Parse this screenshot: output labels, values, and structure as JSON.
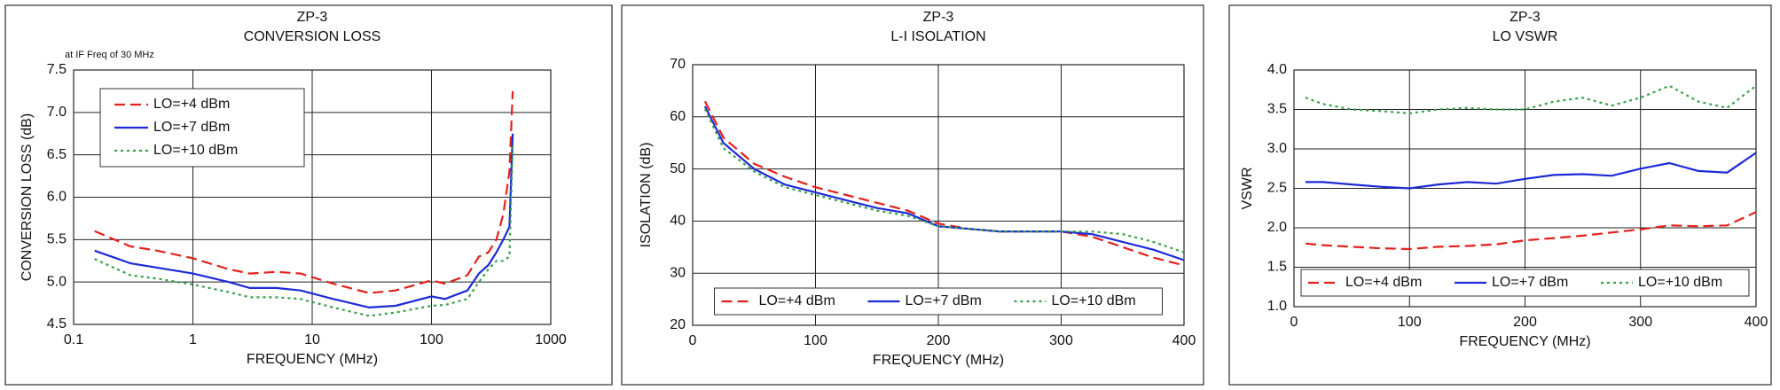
{
  "chart_data": [
    {
      "type": "line",
      "title": "ZP-3",
      "subtitle": "CONVERSION LOSS",
      "annotation": "at IF Freq of 30 MHz",
      "xlabel": "FREQUENCY (MHz)",
      "ylabel": "CONVERSION LOSS (dB)",
      "xscale": "log",
      "grid": true,
      "legend": "upper left",
      "xlim": [
        0.1,
        1000
      ],
      "xticks": [
        0.1,
        1,
        10,
        100,
        1000
      ],
      "ylim": [
        4.5,
        7.5
      ],
      "yticks": [
        4.5,
        {
          "value": 5,
          "label": "5.0"
        },
        5.5,
        {
          "value": 6,
          "label": "6.0"
        },
        6.5,
        {
          "value": 7,
          "label": "7.0"
        },
        7.5
      ],
      "x": [
        0.15,
        0.3,
        0.5,
        1,
        2,
        3,
        5,
        8,
        15,
        30,
        50,
        100,
        130,
        200,
        250,
        300,
        350,
        400,
        450,
        480
      ],
      "series": [
        {
          "name": "LO=+4 dBm",
          "color": "#e3211c",
          "dash": "12 6",
          "values": [
            5.6,
            5.42,
            5.37,
            5.28,
            5.15,
            5.1,
            5.12,
            5.1,
            4.98,
            4.87,
            4.9,
            5.02,
            4.98,
            5.08,
            5.3,
            5.35,
            5.5,
            5.8,
            6.3,
            7.25
          ]
        },
        {
          "name": "LO=+7 dBm",
          "color": "#1d2ad6",
          "dash": "none",
          "values": [
            5.37,
            5.22,
            5.17,
            5.1,
            5.0,
            4.93,
            4.93,
            4.9,
            4.8,
            4.7,
            4.72,
            4.83,
            4.8,
            4.9,
            5.1,
            5.2,
            5.35,
            5.5,
            5.65,
            6.75
          ]
        },
        {
          "name": "LO=+10 dBm",
          "color": "#34a047",
          "dash": "3 4",
          "values": [
            5.27,
            5.08,
            5.04,
            4.97,
            4.88,
            4.82,
            4.82,
            4.8,
            4.7,
            4.6,
            4.64,
            4.72,
            4.73,
            4.8,
            5.0,
            5.15,
            5.25,
            5.25,
            5.3,
            6.6
          ]
        }
      ]
    },
    {
      "type": "line",
      "title": "ZP-3",
      "subtitle": "L-I ISOLATION",
      "xlabel": "FREQUENCY (MHz)",
      "ylabel": "ISOLATION (dB)",
      "xscale": "linear",
      "grid": true,
      "legend": "lower center",
      "xlim": [
        0,
        400
      ],
      "xticks": [
        0,
        100,
        200,
        300,
        400
      ],
      "ylim": [
        20,
        70
      ],
      "yticks": [
        20,
        30,
        40,
        50,
        60,
        70
      ],
      "x": [
        10,
        25,
        50,
        75,
        100,
        125,
        150,
        175,
        200,
        225,
        250,
        275,
        300,
        325,
        350,
        375,
        400
      ],
      "series": [
        {
          "name": "LO=+4 dBm",
          "color": "#e3211c",
          "dash": "12 6",
          "values": [
            63,
            56,
            51,
            48.5,
            46.5,
            45,
            43.5,
            42,
            39.5,
            38.5,
            38,
            38,
            38,
            37,
            35,
            33,
            31.5
          ]
        },
        {
          "name": "LO=+7 dBm",
          "color": "#1d2ad6",
          "dash": "none",
          "values": [
            62,
            55,
            50,
            47,
            45.5,
            44,
            42.5,
            41.5,
            39,
            38.5,
            38,
            38,
            38,
            37.5,
            36,
            34.5,
            32.5
          ]
        },
        {
          "name": "LO=+10 dBm",
          "color": "#34a047",
          "dash": "3 4",
          "values": [
            61.5,
            54,
            49.5,
            46.5,
            45,
            43.5,
            42,
            41,
            39,
            38.5,
            38,
            38,
            38,
            38,
            37.5,
            36,
            34
          ]
        }
      ]
    },
    {
      "type": "line",
      "title": "ZP-3",
      "subtitle": "LO VSWR",
      "xlabel": "FREQUENCY (MHz)",
      "ylabel": "VSWR",
      "xscale": "linear",
      "grid": true,
      "legend": "lower center",
      "xlim": [
        0,
        400
      ],
      "xticks": [
        0,
        100,
        200,
        300,
        400
      ],
      "ylim": [
        1,
        4
      ],
      "yticks": [
        {
          "value": 1,
          "label": "1.0"
        },
        1.5,
        {
          "value": 2,
          "label": "2.0"
        },
        2.5,
        {
          "value": 3,
          "label": "3.0"
        },
        3.5,
        {
          "value": 4,
          "label": "4.0"
        }
      ],
      "x": [
        10,
        25,
        50,
        75,
        100,
        125,
        150,
        175,
        200,
        225,
        250,
        275,
        300,
        325,
        350,
        375,
        400
      ],
      "series": [
        {
          "name": "LO=+4 dBm",
          "color": "#e3211c",
          "dash": "12 6",
          "values": [
            1.8,
            1.78,
            1.76,
            1.74,
            1.73,
            1.76,
            1.77,
            1.79,
            1.84,
            1.87,
            1.9,
            1.94,
            1.98,
            2.03,
            2.02,
            2.03,
            2.2
          ]
        },
        {
          "name": "LO=+7 dBm",
          "color": "#1d2ad6",
          "dash": "none",
          "values": [
            2.58,
            2.58,
            2.55,
            2.52,
            2.5,
            2.55,
            2.58,
            2.56,
            2.62,
            2.67,
            2.68,
            2.66,
            2.75,
            2.82,
            2.72,
            2.7,
            2.95
          ]
        },
        {
          "name": "LO=+10 dBm",
          "color": "#34a047",
          "dash": "3 4",
          "values": [
            3.65,
            3.57,
            3.5,
            3.48,
            3.45,
            3.5,
            3.52,
            3.5,
            3.5,
            3.6,
            3.65,
            3.55,
            3.65,
            3.8,
            3.6,
            3.52,
            3.8
          ]
        }
      ]
    }
  ]
}
